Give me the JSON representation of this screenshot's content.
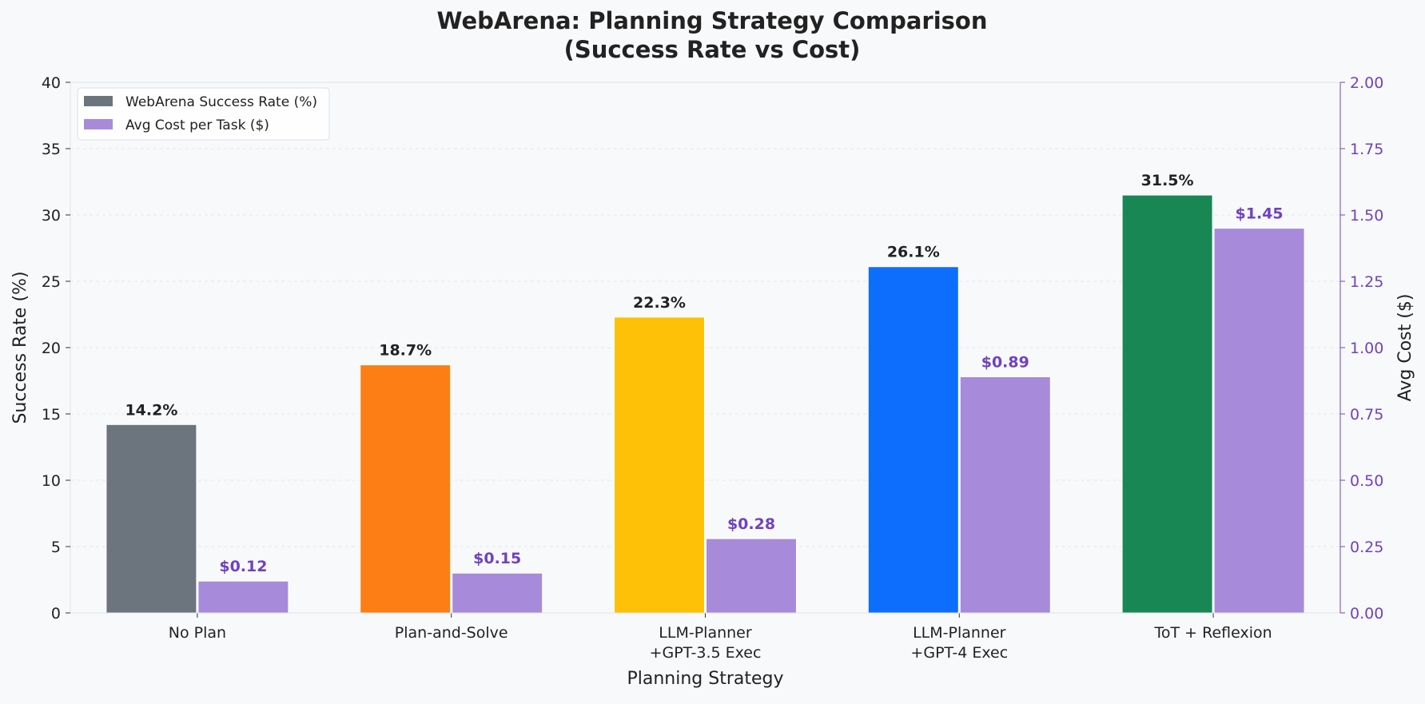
{
  "chart_data": {
    "type": "bar",
    "title_lines": [
      "WebArena: Planning Strategy Comparison",
      "(Success Rate vs Cost)"
    ],
    "xlabel": "Planning Strategy",
    "ylabel": "Success Rate (%)",
    "y2label": "Avg Cost ($)",
    "categories": [
      [
        "No Plan"
      ],
      [
        "Plan-and-Solve"
      ],
      [
        "LLM-Planner",
        "+GPT-3.5 Exec"
      ],
      [
        "LLM-Planner",
        "+GPT-4 Exec"
      ],
      [
        "ToT + Reflexion"
      ]
    ],
    "series": [
      {
        "name": "WebArena Success Rate (%)",
        "axis": "left",
        "values": [
          14.2,
          18.7,
          22.3,
          26.1,
          31.5
        ],
        "labels": [
          "14.2%",
          "18.7%",
          "22.3%",
          "26.1%",
          "31.5%"
        ],
        "colors": [
          "#6c757d",
          "#fd7e14",
          "#ffc107",
          "#0d6efd",
          "#198754"
        ],
        "legend_color": "#6c757d",
        "label_color": "#222222"
      },
      {
        "name": "Avg Cost per Task ($)",
        "axis": "right",
        "values": [
          0.12,
          0.15,
          0.28,
          0.89,
          1.45
        ],
        "labels": [
          "$0.12",
          "$0.15",
          "$0.28",
          "$0.89",
          "$1.45"
        ],
        "colors": [
          "#a78bda",
          "#a78bda",
          "#a78bda",
          "#a78bda",
          "#a78bda"
        ],
        "legend_color": "#a78bda",
        "label_color": "#6f42c1"
      }
    ],
    "ylim": [
      0,
      40
    ],
    "yticks": [
      0,
      5,
      10,
      15,
      20,
      25,
      30,
      35,
      40
    ],
    "y2lim": [
      0,
      2.0
    ],
    "y2ticks": [
      "0.00",
      "0.25",
      "0.50",
      "0.75",
      "1.00",
      "1.25",
      "1.50",
      "1.75",
      "2.00"
    ],
    "y2_color": "#6f42c1",
    "grid": true,
    "legend_position": "top-left"
  }
}
